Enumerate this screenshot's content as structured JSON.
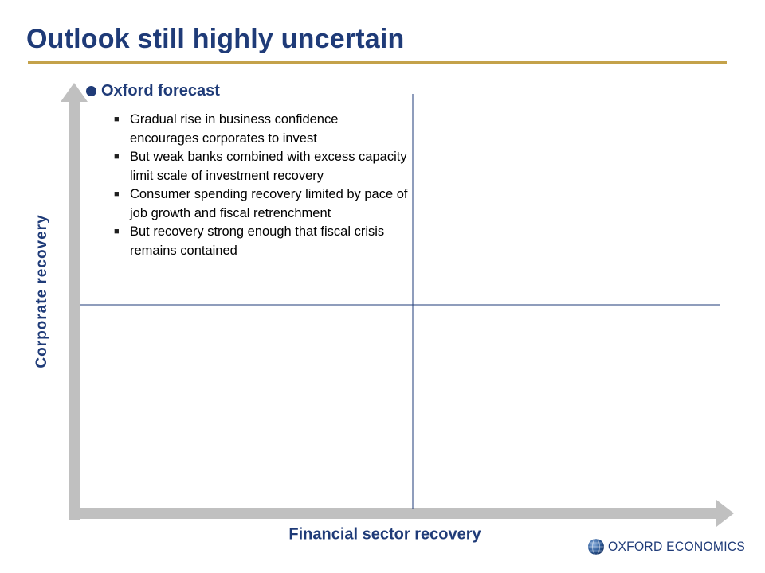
{
  "title": "Outlook still highly uncertain",
  "forecast": {
    "heading": "Oxford forecast",
    "bullets": [
      "Gradual rise in business confidence encourages corporates to invest",
      "But weak banks combined with excess capacity limit scale of investment recovery",
      "Consumer spending recovery limited by pace of job growth and fiscal retrenchment",
      "But recovery strong enough that fiscal crisis remains contained"
    ]
  },
  "axes": {
    "y_label": "Corporate recovery",
    "x_label": "Financial sector recovery"
  },
  "logo": {
    "text": "OXFORD ECONOMICS",
    "icon": "globe-icon"
  },
  "colors": {
    "title": "#1f3b78",
    "title_rule": "#c4a24a",
    "axis_arrow": "#c0c0c0",
    "quadrant_line": "#1f3b78",
    "heading_dot": "#1f3b78",
    "logo_globe": "#2e5c9a"
  }
}
